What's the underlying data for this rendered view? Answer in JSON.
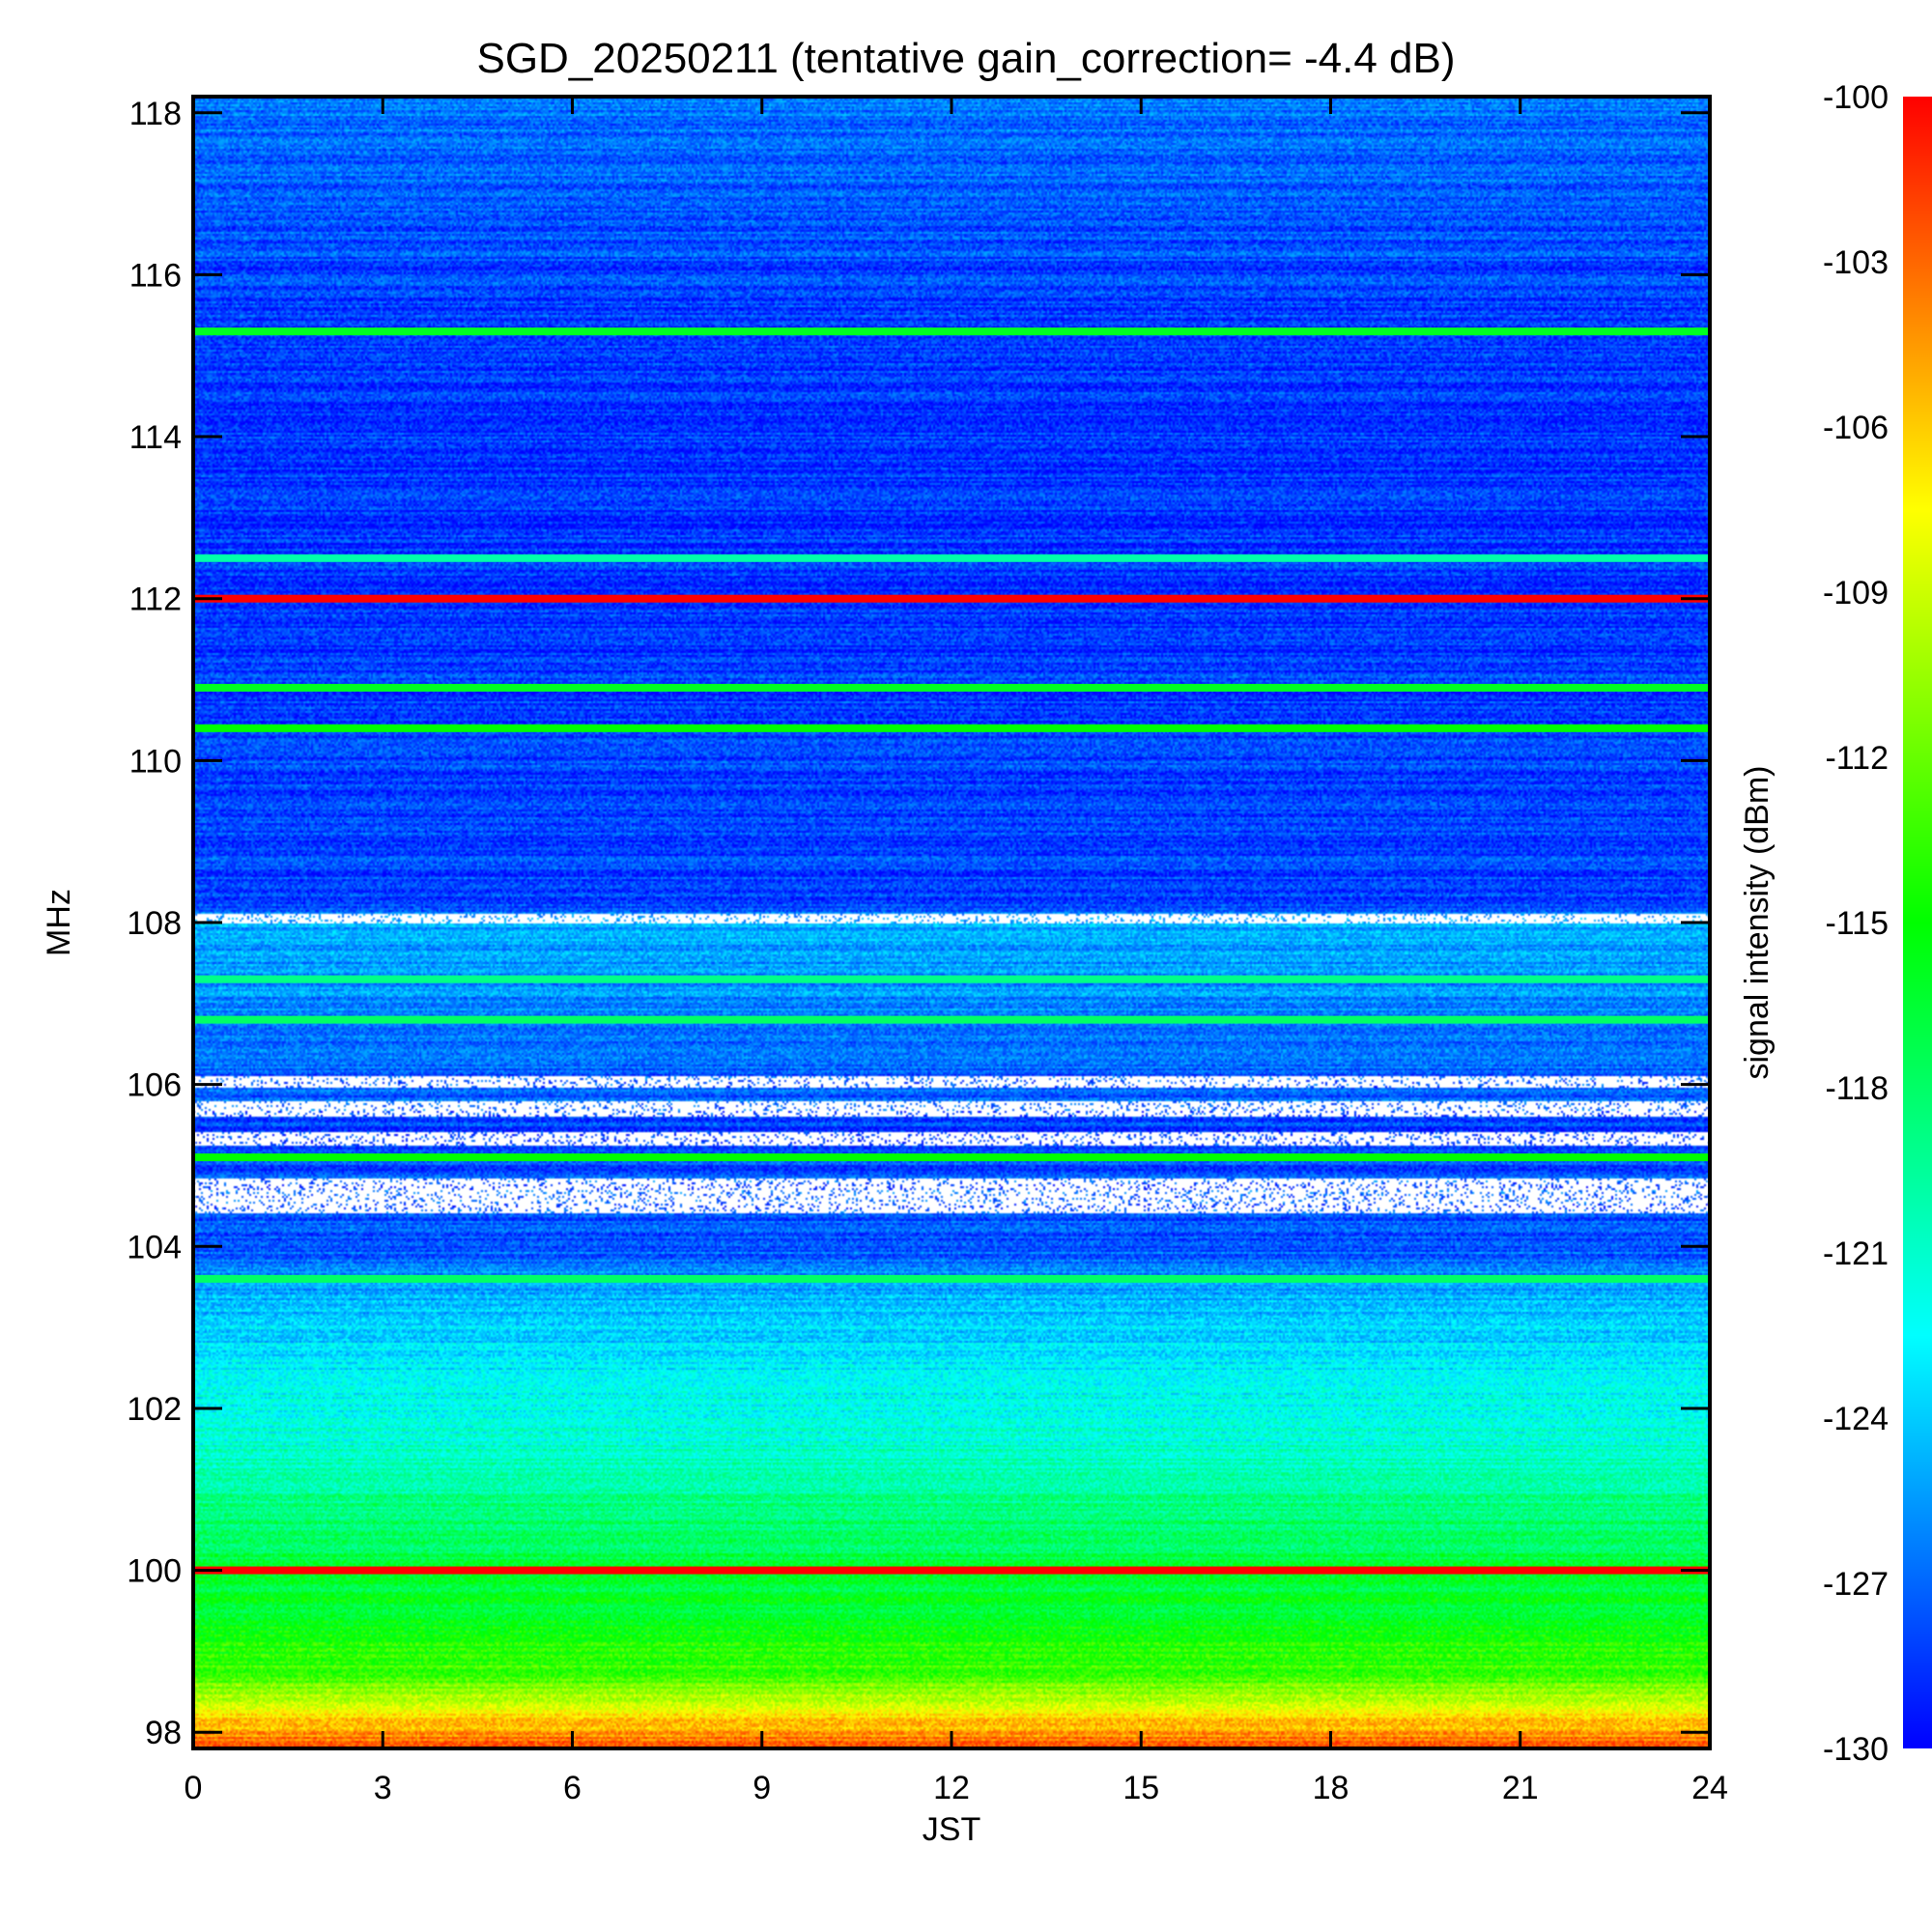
{
  "chart_data": {
    "type": "heatmap",
    "title": "SGD_20250211 (tentative gain_correction= -4.4 dB)",
    "xlabel": "JST",
    "ylabel": "MHz",
    "colorbar_label": "signal intensity (dBm)",
    "xlim": [
      0,
      24
    ],
    "ylim": [
      97.8,
      118.2
    ],
    "clim": [
      -130,
      -100
    ],
    "x_ticks": [
      0,
      3,
      6,
      9,
      12,
      15,
      18,
      21,
      24
    ],
    "y_ticks": [
      98,
      100,
      102,
      104,
      106,
      108,
      110,
      112,
      114,
      116,
      118
    ],
    "colorbar_ticks": [
      -100,
      -103,
      -106,
      -109,
      -112,
      -115,
      -118,
      -121,
      -124,
      -127,
      -130
    ],
    "colormap": [
      "#0000ff",
      "#0080ff",
      "#00ffff",
      "#00ff80",
      "#00ff00",
      "#80ff00",
      "#ffff00",
      "#ff8000",
      "#ff0000"
    ],
    "saturated_color": "#ffffff",
    "background_profile": [
      {
        "mhz": 97.8,
        "dbm": -102
      },
      {
        "mhz": 98.2,
        "dbm": -107
      },
      {
        "mhz": 98.7,
        "dbm": -113
      },
      {
        "mhz": 99.5,
        "dbm": -116
      },
      {
        "mhz": 100.5,
        "dbm": -118
      },
      {
        "mhz": 101.5,
        "dbm": -121
      },
      {
        "mhz": 102.5,
        "dbm": -123
      },
      {
        "mhz": 103.3,
        "dbm": -124.5
      },
      {
        "mhz": 104.0,
        "dbm": -127.5
      },
      {
        "mhz": 105.5,
        "dbm": -128
      },
      {
        "mhz": 107.0,
        "dbm": -126
      },
      {
        "mhz": 108.0,
        "dbm": -125
      },
      {
        "mhz": 108.2,
        "dbm": -128
      },
      {
        "mhz": 110.0,
        "dbm": -128
      },
      {
        "mhz": 112.0,
        "dbm": -128.5
      },
      {
        "mhz": 114.0,
        "dbm": -128.5
      },
      {
        "mhz": 116.0,
        "dbm": -128
      },
      {
        "mhz": 118.2,
        "dbm": -126.5
      }
    ],
    "station_lines": [
      {
        "mhz": 100.0,
        "dbm": -100
      },
      {
        "mhz": 103.6,
        "dbm": -118
      },
      {
        "mhz": 105.1,
        "dbm": -115
      },
      {
        "mhz": 106.8,
        "dbm": -118
      },
      {
        "mhz": 107.3,
        "dbm": -119
      },
      {
        "mhz": 110.4,
        "dbm": -115
      },
      {
        "mhz": 110.9,
        "dbm": -116
      },
      {
        "mhz": 112.0,
        "dbm": -100
      },
      {
        "mhz": 112.5,
        "dbm": -120
      },
      {
        "mhz": 115.3,
        "dbm": -116
      }
    ],
    "saturated_bands": [
      {
        "mhz_min": 104.4,
        "mhz_max": 104.85
      },
      {
        "mhz_min": 105.25,
        "mhz_max": 105.4
      },
      {
        "mhz_min": 105.6,
        "mhz_max": 105.8
      },
      {
        "mhz_min": 105.95,
        "mhz_max": 106.1
      },
      {
        "mhz_min": 108.0,
        "mhz_max": 108.1
      }
    ]
  }
}
